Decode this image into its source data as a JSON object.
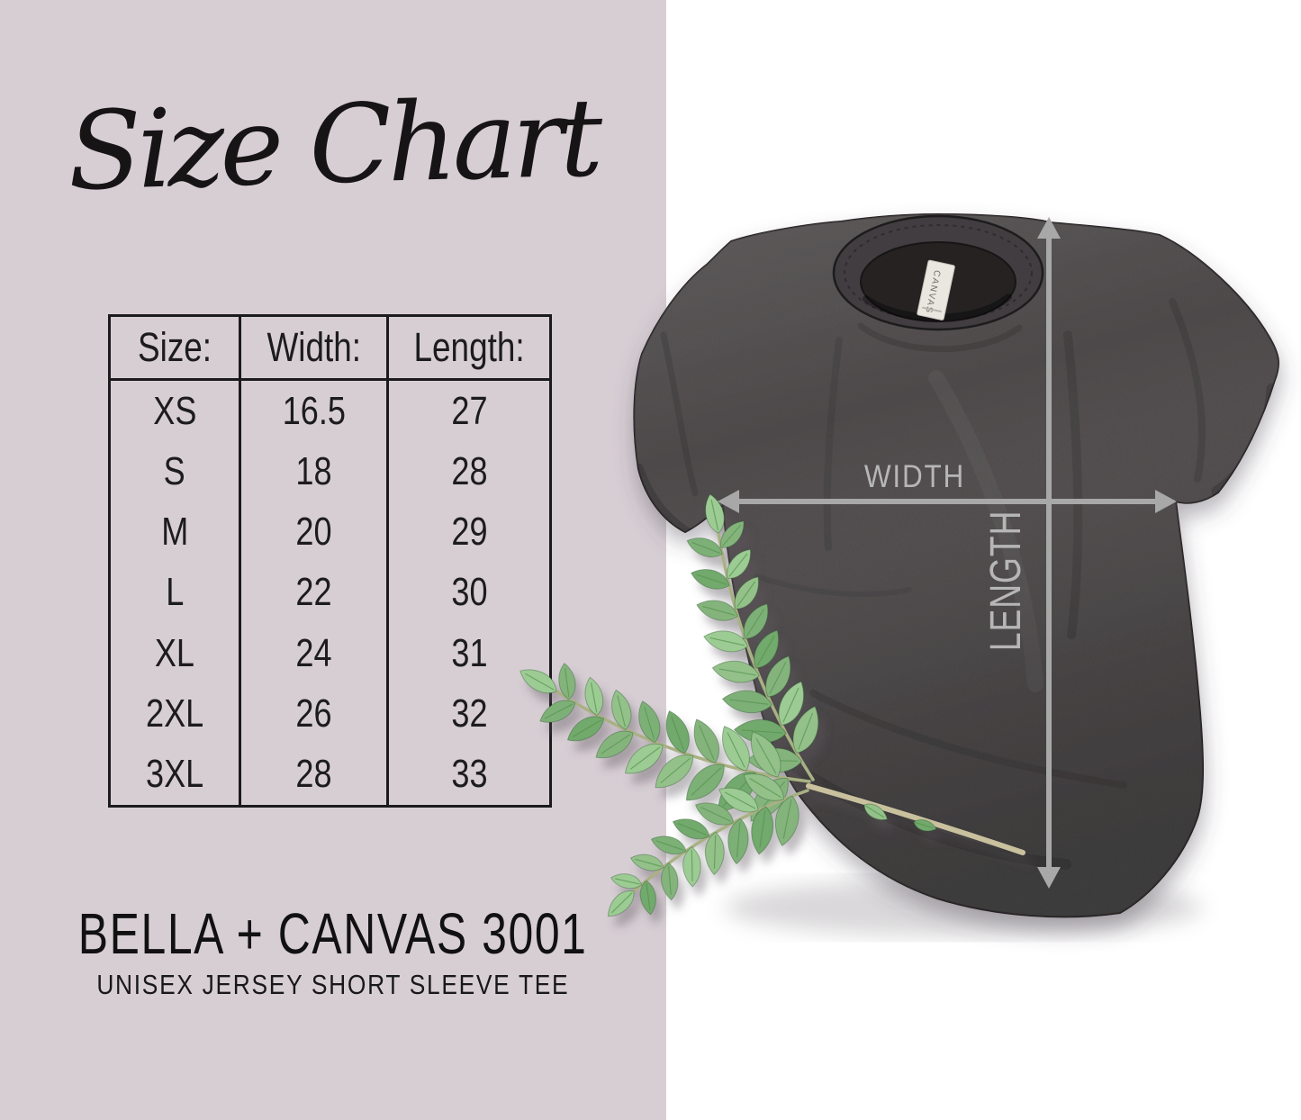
{
  "left_panel": {
    "title": "Size Chart",
    "table": {
      "headers": [
        "Size:",
        "Width:",
        "Length:"
      ],
      "rows": [
        [
          "XS",
          "16.5",
          "27"
        ],
        [
          "S",
          "18",
          "28"
        ],
        [
          "M",
          "20",
          "29"
        ],
        [
          "L",
          "22",
          "30"
        ],
        [
          "XL",
          "24",
          "31"
        ],
        [
          "2XL",
          "26",
          "32"
        ],
        [
          "3XL",
          "28",
          "33"
        ]
      ]
    },
    "brand_line": "BELLA + CANVAS 3001",
    "brand_subline": "UNISEX JERSEY SHORT SLEEVE TEE"
  },
  "photo_panel": {
    "width_label": "WIDTH",
    "length_label": "LENGTH",
    "neck_tag_text": "CANVAS"
  },
  "colors": {
    "panel_bg": "#d7ced4",
    "photo_bg": "#ffffff",
    "text": "#1c1b1c",
    "shirt": "#3e3a3b",
    "arrow": "#a8a8a8",
    "measure_label": "#b6b6b6",
    "leaf_green": "#7db276"
  },
  "chart_data": {
    "type": "table",
    "title": "Size Chart",
    "columns": [
      "Size:",
      "Width:",
      "Length:"
    ],
    "rows": [
      [
        "XS",
        "16.5",
        "27"
      ],
      [
        "S",
        "18",
        "28"
      ],
      [
        "M",
        "20",
        "29"
      ],
      [
        "L",
        "22",
        "30"
      ],
      [
        "XL",
        "24",
        "31"
      ],
      [
        "2XL",
        "26",
        "32"
      ],
      [
        "3XL",
        "28",
        "33"
      ]
    ],
    "product": "BELLA + CANVAS 3001",
    "product_subtitle": "UNISEX JERSEY SHORT SLEEVE TEE",
    "annotations": [
      "WIDTH",
      "LENGTH"
    ]
  }
}
